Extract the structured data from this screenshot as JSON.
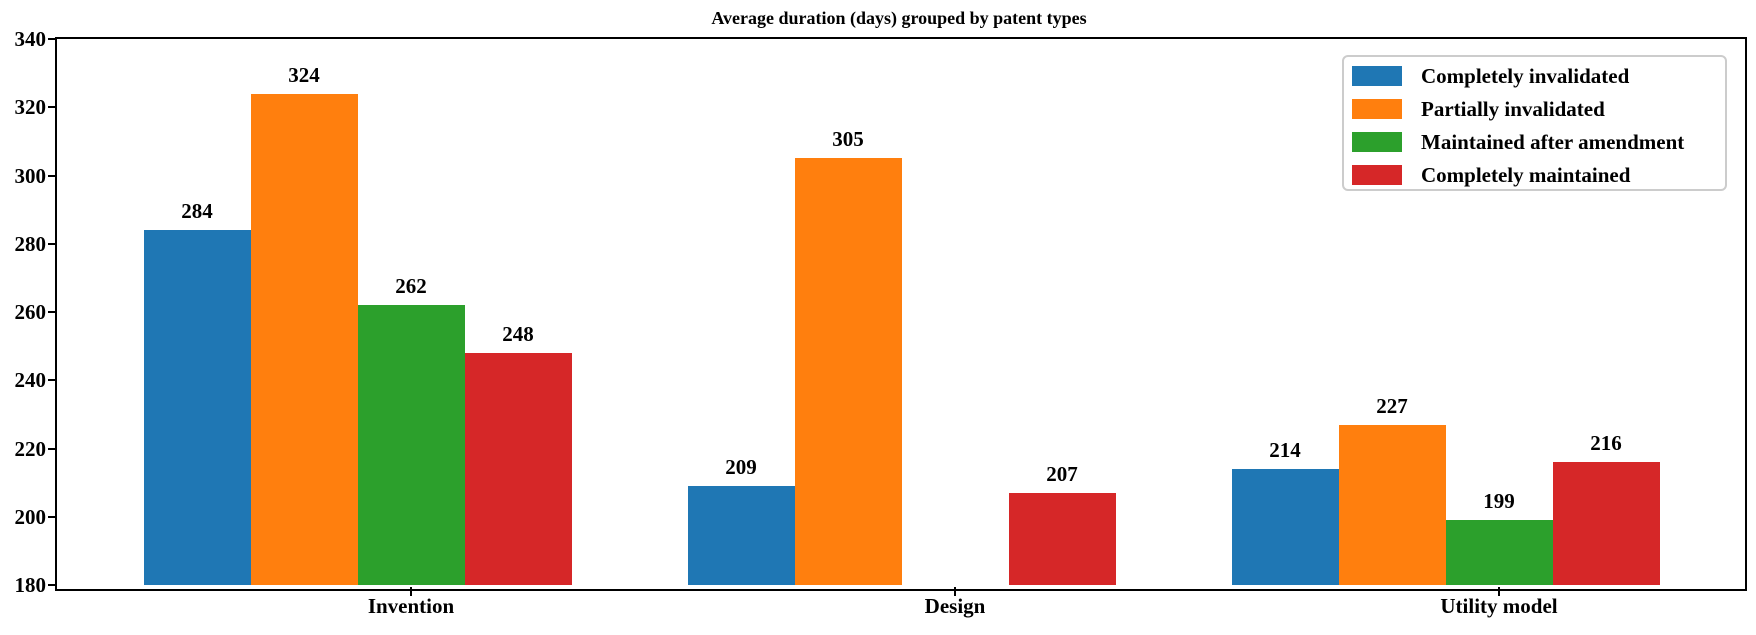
{
  "chart_data": {
    "type": "bar",
    "title": "Average duration (days) grouped by patent types",
    "categories": [
      "Invention",
      "Design",
      "Utility model"
    ],
    "series": [
      {
        "name": "Completely invalidated",
        "color": "#1f77b4",
        "values": [
          284,
          209,
          214
        ]
      },
      {
        "name": "Partially invalidated",
        "color": "#ff7f0e",
        "values": [
          324,
          305,
          227
        ]
      },
      {
        "name": "Maintained after amendment",
        "color": "#2ca02c",
        "values": [
          262,
          null,
          199
        ]
      },
      {
        "name": "Completely maintained",
        "color": "#d62728",
        "values": [
          248,
          207,
          216
        ]
      }
    ],
    "ylim": [
      180,
      340
    ],
    "yticks": [
      180,
      200,
      220,
      240,
      260,
      280,
      300,
      320,
      340
    ],
    "xlabel": "",
    "ylabel": "",
    "bar_value_labels": true,
    "grid": false,
    "legend_position": "upper right",
    "axis_color": "#000000",
    "legend_border_color": "#cccccc",
    "background_color": "#ffffff"
  }
}
